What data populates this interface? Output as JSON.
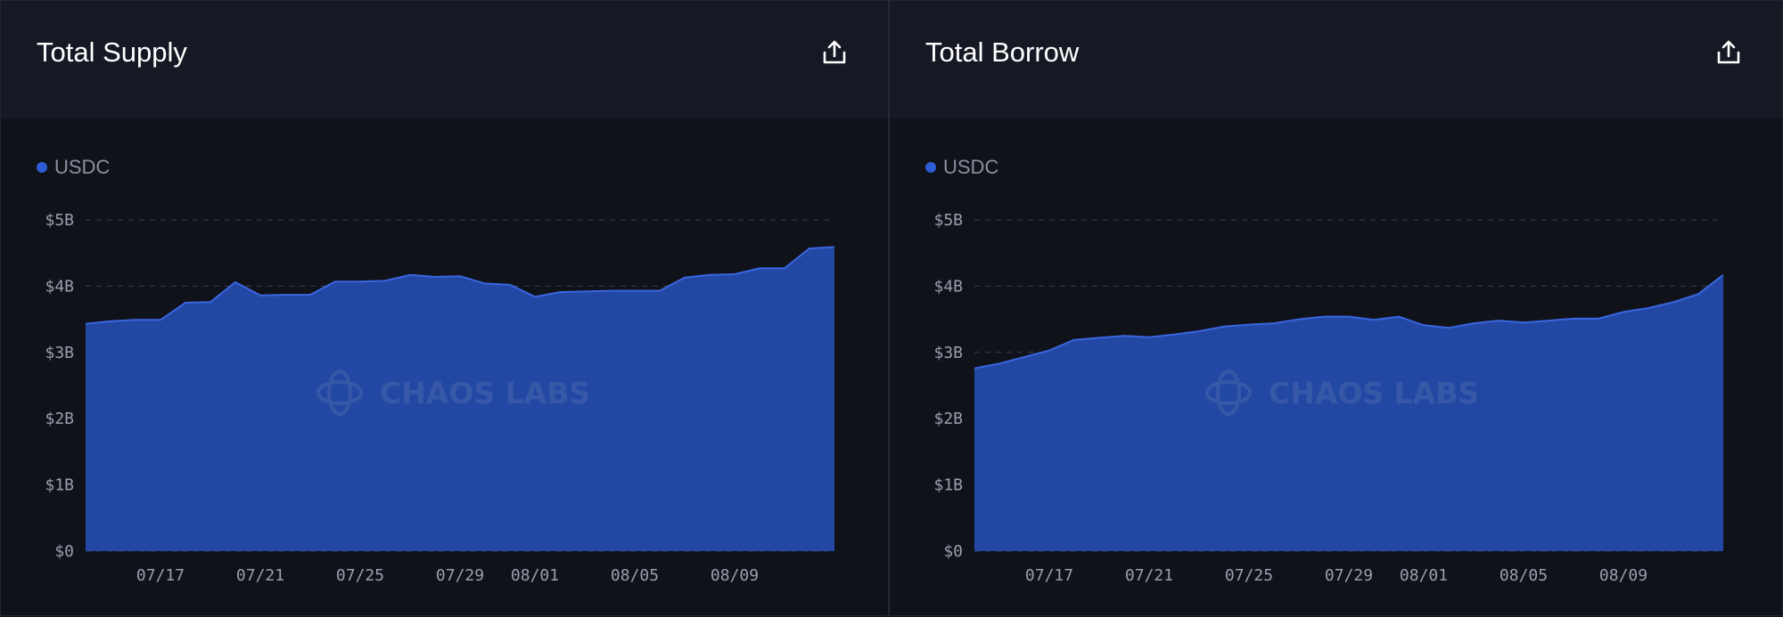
{
  "colors": {
    "accent": "#2e5bd6",
    "area_fill": "#2348a4",
    "line": "#3a66e0",
    "grid": "#3a3f4f"
  },
  "watermark": "CHAOS LABS",
  "panels": [
    {
      "title": "Total Supply",
      "export_icon": "share-icon",
      "chart_data": {
        "type": "area",
        "series": [
          {
            "name": "USDC",
            "values": [
              3.43,
              3.47,
              3.49,
              3.49,
              3.75,
              3.76,
              4.06,
              3.86,
              3.87,
              3.87,
              4.07,
              4.07,
              4.08,
              4.17,
              4.14,
              4.15,
              4.04,
              4.02,
              3.84,
              3.91,
              3.92,
              3.93,
              3.93,
              3.93,
              4.13,
              4.17,
              4.18,
              4.27,
              4.27,
              4.57,
              4.59
            ]
          }
        ],
        "x_start": "07/14",
        "x_ticks": [
          "07/17",
          "07/21",
          "07/25",
          "07/29",
          "08/01",
          "08/05",
          "08/09"
        ],
        "y_ticks": [
          "$0",
          "$1B",
          "$2B",
          "$3B",
          "$4B",
          "$5B"
        ],
        "ylim": [
          0,
          5
        ],
        "grid": true,
        "legend": "top-left"
      }
    },
    {
      "title": "Total Borrow",
      "export_icon": "share-icon",
      "chart_data": {
        "type": "area",
        "series": [
          {
            "name": "USDC",
            "values": [
              2.76,
              2.83,
              2.93,
              3.03,
              3.19,
              3.22,
              3.25,
              3.23,
              3.27,
              3.32,
              3.39,
              3.42,
              3.44,
              3.5,
              3.54,
              3.54,
              3.49,
              3.54,
              3.41,
              3.37,
              3.44,
              3.48,
              3.45,
              3.48,
              3.51,
              3.51,
              3.61,
              3.67,
              3.76,
              3.88,
              4.17
            ]
          }
        ],
        "x_start": "07/14",
        "x_ticks": [
          "07/17",
          "07/21",
          "07/25",
          "07/29",
          "08/01",
          "08/05",
          "08/09"
        ],
        "y_ticks": [
          "$0",
          "$1B",
          "$2B",
          "$3B",
          "$4B",
          "$5B"
        ],
        "ylim": [
          0,
          5
        ],
        "grid": true,
        "legend": "top-left"
      }
    }
  ]
}
